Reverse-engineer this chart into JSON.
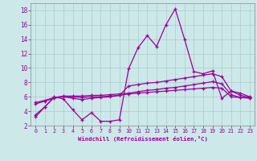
{
  "xlabel": "Windchill (Refroidissement éolien,°C)",
  "background_color": "#cce8e8",
  "grid_color": "#aacccc",
  "line_color": "#990099",
  "spike_x": [
    0,
    1,
    2,
    3,
    4,
    5,
    6,
    7,
    8,
    9,
    10,
    11,
    12,
    13,
    14,
    15,
    16,
    17,
    18,
    19,
    20,
    21,
    22,
    23
  ],
  "spike_y": [
    3.2,
    4.6,
    6.0,
    5.7,
    4.2,
    2.8,
    3.8,
    2.6,
    2.6,
    2.8,
    9.9,
    12.8,
    14.5,
    13.0,
    16.0,
    18.2,
    14.0,
    9.5,
    9.2,
    9.6,
    5.8,
    6.8,
    6.5,
    6.0
  ],
  "trend1_x": [
    0,
    1,
    2,
    3,
    4,
    5,
    6,
    7,
    8,
    9,
    10,
    11,
    12,
    13,
    14,
    15,
    16,
    17,
    18,
    19,
    20,
    21,
    22,
    23
  ],
  "trend1_y": [
    3.5,
    4.6,
    5.9,
    6.0,
    5.8,
    5.6,
    5.8,
    5.9,
    6.0,
    6.2,
    7.5,
    7.7,
    7.9,
    8.0,
    8.2,
    8.4,
    8.6,
    8.8,
    9.0,
    9.2,
    8.8,
    6.8,
    6.2,
    5.9
  ],
  "trend2_x": [
    0,
    1,
    2,
    3,
    4,
    5,
    6,
    7,
    8,
    9,
    10,
    11,
    12,
    13,
    14,
    15,
    16,
    17,
    18,
    19,
    20,
    21,
    22,
    23
  ],
  "trend2_y": [
    5.0,
    5.4,
    5.8,
    6.0,
    6.0,
    5.9,
    6.0,
    6.0,
    6.1,
    6.2,
    6.4,
    6.5,
    6.6,
    6.7,
    6.8,
    6.9,
    7.0,
    7.1,
    7.2,
    7.3,
    7.2,
    6.0,
    5.9,
    5.9
  ],
  "trend3_x": [
    0,
    1,
    2,
    3,
    4,
    5,
    6,
    7,
    8,
    9,
    10,
    11,
    12,
    13,
    14,
    15,
    16,
    17,
    18,
    19,
    20,
    21,
    22,
    23
  ],
  "trend3_y": [
    5.2,
    5.5,
    5.9,
    6.1,
    6.1,
    6.1,
    6.2,
    6.2,
    6.3,
    6.4,
    6.5,
    6.7,
    6.9,
    7.0,
    7.2,
    7.3,
    7.5,
    7.7,
    7.9,
    8.1,
    7.8,
    6.3,
    5.9,
    5.8
  ],
  "ylim": [
    2,
    19
  ],
  "xlim": [
    -0.5,
    23.5
  ],
  "yticks": [
    2,
    4,
    6,
    8,
    10,
    12,
    14,
    16,
    18
  ],
  "xticks": [
    0,
    1,
    2,
    3,
    4,
    5,
    6,
    7,
    8,
    9,
    10,
    11,
    12,
    13,
    14,
    15,
    16,
    17,
    18,
    19,
    20,
    21,
    22,
    23
  ]
}
